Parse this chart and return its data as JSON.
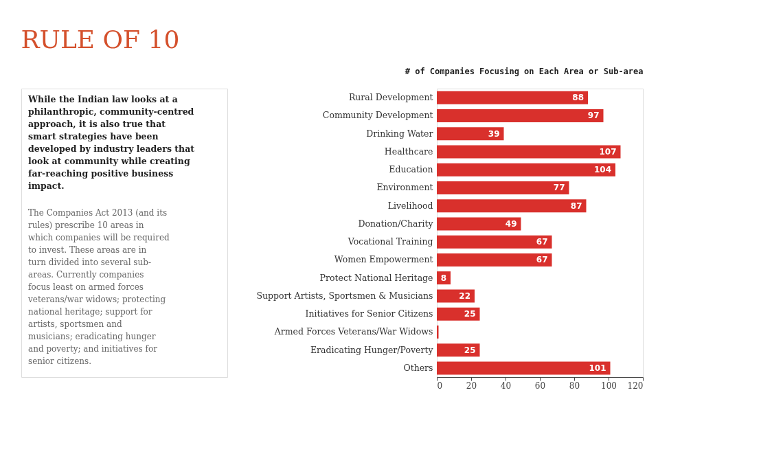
{
  "chart_data": {
    "type": "bar",
    "orientation": "horizontal",
    "title": "RULE OF 10",
    "subtitle": "# of Companies Focusing on Each Area or Sub-area",
    "annotations": [
      "While the Indian law looks at a philanthropic, community-centred approach, it is also true that smart strategies have been developed by industry leaders that look at community while creating far-reaching positive business impact.",
      "The Companies Act 2013 (and its rules) prescribe 10 areas in which companies will be required to invest.  These areas are in turn divided into several sub-areas.  Currently companies focus least on armed forces veterans/war widows; protecting national heritage; support for artists, sportsmen and musicians; eradicating hunger and poverty; and initiatives for senior citizens."
    ],
    "categories": [
      "Rural Development",
      "Community Development",
      "Drinking Water",
      "Healthcare",
      "Education",
      "Environment",
      "Livelihood",
      "Donation/Charity",
      "Vocational Training",
      "Women Empowerment",
      "Protect National Heritage",
      "Support Artists, Sportsmen & Musicians",
      "Initiatives for Senior Citizens",
      "Armed Forces Veterans/War Widows",
      "Eradicating Hunger/Poverty",
      "Others"
    ],
    "values": [
      88,
      97,
      39,
      107,
      104,
      77,
      87,
      49,
      67,
      67,
      8,
      22,
      25,
      1,
      25,
      101
    ],
    "value_labels": [
      "88",
      "97",
      "39",
      "107",
      "104",
      "77",
      "87",
      "49",
      "67",
      "67",
      "8",
      "22",
      "25",
      null,
      "25",
      "101"
    ],
    "color": "#d9302c",
    "xlim": [
      0,
      120
    ],
    "xticks": [
      0,
      20,
      40,
      60,
      80,
      100,
      120
    ],
    "grid": false
  }
}
